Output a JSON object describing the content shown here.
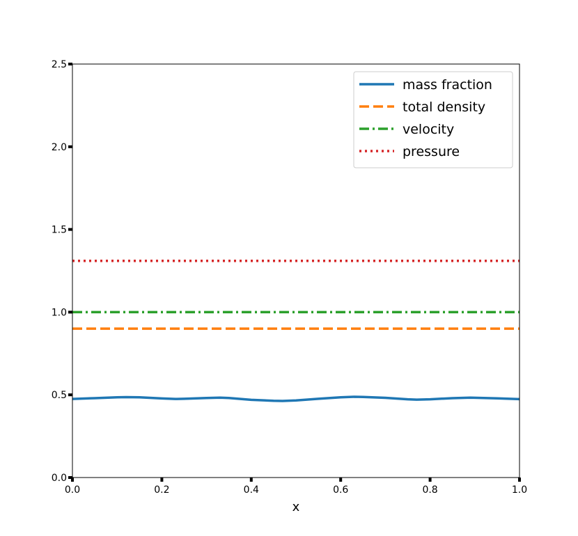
{
  "chart_data": {
    "type": "line",
    "title": "",
    "xlabel": "x",
    "ylabel": "",
    "xlim": [
      0.0,
      1.0
    ],
    "ylim": [
      0.0,
      2.5
    ],
    "x_ticks": [
      "0.0",
      "0.2",
      "0.4",
      "0.6",
      "0.8",
      "1.0"
    ],
    "y_ticks": [
      "0.0",
      "0.5",
      "1.0",
      "1.5",
      "2.0",
      "2.5"
    ],
    "grid": false,
    "legend_position": "top-right",
    "x": [
      0.0,
      0.05,
      0.1,
      0.12,
      0.15,
      0.2,
      0.23,
      0.25,
      0.3,
      0.33,
      0.35,
      0.4,
      0.45,
      0.47,
      0.5,
      0.55,
      0.6,
      0.63,
      0.65,
      0.7,
      0.75,
      0.77,
      0.8,
      0.85,
      0.89,
      0.95,
      1.0
    ],
    "series": [
      {
        "name": "mass fraction",
        "color": "#1f77b4",
        "style": "solid",
        "values": [
          0.475,
          0.48,
          0.485,
          0.486,
          0.485,
          0.478,
          0.475,
          0.476,
          0.481,
          0.483,
          0.481,
          0.47,
          0.464,
          0.463,
          0.466,
          0.476,
          0.485,
          0.488,
          0.487,
          0.482,
          0.473,
          0.471,
          0.473,
          0.48,
          0.483,
          0.479,
          0.474
        ]
      },
      {
        "name": "total density",
        "color": "#ff7f0e",
        "style": "dashed",
        "values": [
          0.9,
          0.9,
          0.9,
          0.9,
          0.9,
          0.9,
          0.9,
          0.9,
          0.9,
          0.9,
          0.9,
          0.9,
          0.9,
          0.9,
          0.9,
          0.9,
          0.9,
          0.9,
          0.9,
          0.9,
          0.9,
          0.9,
          0.9,
          0.9,
          0.9,
          0.9,
          0.9
        ]
      },
      {
        "name": "velocity",
        "color": "#2ca02c",
        "style": "dashdot",
        "values": [
          1.0,
          1.0,
          1.0,
          1.0,
          1.0,
          1.0,
          1.0,
          1.0,
          1.0,
          1.0,
          1.0,
          1.0,
          1.0,
          1.0,
          1.0,
          1.0,
          1.0,
          1.0,
          1.0,
          1.0,
          1.0,
          1.0,
          1.0,
          1.0,
          1.0,
          1.0,
          1.0
        ]
      },
      {
        "name": "pressure",
        "color": "#d62728",
        "style": "dotted",
        "values": [
          1.31,
          1.31,
          1.31,
          1.31,
          1.31,
          1.31,
          1.31,
          1.31,
          1.31,
          1.31,
          1.31,
          1.31,
          1.31,
          1.31,
          1.31,
          1.31,
          1.31,
          1.31,
          1.31,
          1.31,
          1.31,
          1.31,
          1.31,
          1.31,
          1.31,
          1.31,
          1.31
        ]
      }
    ]
  }
}
